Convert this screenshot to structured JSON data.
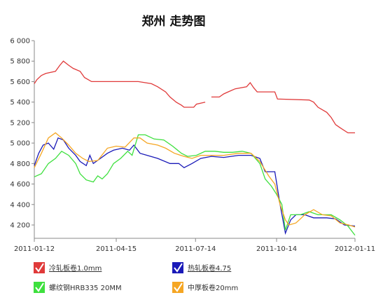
{
  "chart_data": {
    "type": "line",
    "title": "郑州 走势图",
    "xlim": [
      "2011-01-12",
      "2012-01-11"
    ],
    "xticks": [
      "2011-01-12",
      "2011-04-15",
      "2011-07-14",
      "2011-10-14",
      "2012-01-11"
    ],
    "ylim": [
      4070,
      6000
    ],
    "yticks": [
      {
        "value": 4200,
        "label": "4 200"
      },
      {
        "value": 4400,
        "label": "4 400"
      },
      {
        "value": 4600,
        "label": "4 600"
      },
      {
        "value": 4800,
        "label": "4 800"
      },
      {
        "value": 5000,
        "label": "5 000"
      },
      {
        "value": 5200,
        "label": "5 200"
      },
      {
        "value": 5400,
        "label": "5 400"
      },
      {
        "value": 5600,
        "label": "5 600"
      },
      {
        "value": 5800,
        "label": "5 800"
      },
      {
        "value": 6000,
        "label": "6 000"
      }
    ],
    "grid": false,
    "series": [
      {
        "name": "冷轧板卷1.0mm",
        "color": "#e03a3a",
        "x": [
          "2011-01-12",
          "2011-01-15",
          "2011-01-20",
          "2011-01-25",
          "2011-02-05",
          "2011-02-10",
          "2011-02-14",
          "2011-02-20",
          "2011-02-25",
          "2011-03-05",
          "2011-03-10",
          "2011-03-18",
          "2011-04-15",
          "2011-05-10",
          "2011-05-25",
          "2011-06-01",
          "2011-06-10",
          "2011-06-15",
          "2011-06-22",
          "2011-06-28",
          "2011-07-01",
          "2011-07-12",
          "2011-07-15",
          "2011-07-25",
          "2011-07-28",
          "2011-08-01",
          "2011-08-10",
          "2011-08-15",
          "2011-08-20",
          "2011-08-28",
          "2011-09-10",
          "2011-09-14",
          "2011-09-18",
          "2011-09-22",
          "2011-10-12",
          "2011-10-15",
          "2011-11-20",
          "2011-11-25",
          "2011-11-30",
          "2011-12-10",
          "2011-12-15",
          "2011-12-20",
          "2011-12-25",
          "2012-01-03",
          "2012-01-11"
        ],
        "values": [
          5580,
          5620,
          5660,
          5680,
          5700,
          5760,
          5800,
          5760,
          5730,
          5700,
          5640,
          5600,
          5600,
          5600,
          5580,
          5550,
          5500,
          5450,
          5400,
          5370,
          5350,
          5350,
          5380,
          5400,
          null,
          5450,
          5450,
          5480,
          5500,
          5530,
          5550,
          5590,
          5540,
          5500,
          5500,
          5430,
          5420,
          5400,
          5350,
          5300,
          5250,
          5180,
          5150,
          5100,
          5100
        ]
      },
      {
        "name": "热轧板卷4.75",
        "color": "#1a1ab8",
        "x": [
          "2011-01-12",
          "2011-01-17",
          "2011-01-22",
          "2011-01-28",
          "2011-02-03",
          "2011-02-08",
          "2011-02-14",
          "2011-02-20",
          "2011-02-28",
          "2011-03-05",
          "2011-03-12",
          "2011-03-16",
          "2011-03-20",
          "2011-03-28",
          "2011-04-05",
          "2011-04-12",
          "2011-04-22",
          "2011-04-30",
          "2011-05-05",
          "2011-05-12",
          "2011-05-20",
          "2011-06-01",
          "2011-06-15",
          "2011-06-25",
          "2011-07-01",
          "2011-07-10",
          "2011-07-20",
          "2011-08-01",
          "2011-08-15",
          "2011-09-01",
          "2011-09-15",
          "2011-09-25",
          "2011-10-01",
          "2011-10-12",
          "2011-10-18",
          "2011-10-24",
          "2011-10-30",
          "2011-11-05",
          "2011-11-15",
          "2011-11-25",
          "2011-12-10",
          "2011-12-20",
          "2011-12-30",
          "2012-01-11"
        ],
        "values": [
          4780,
          4900,
          4980,
          5000,
          4940,
          5050,
          5030,
          4950,
          4880,
          4820,
          4780,
          4880,
          4800,
          4850,
          4900,
          4930,
          4950,
          4930,
          4980,
          4900,
          4880,
          4850,
          4800,
          4800,
          4760,
          4800,
          4850,
          4870,
          4860,
          4880,
          4880,
          4850,
          4720,
          4720,
          4400,
          4120,
          4250,
          4300,
          4300,
          4270,
          4270,
          4260,
          4200,
          4190
        ]
      },
      {
        "name": "螺纹钢HRB335 20MM",
        "color": "#3ee03e",
        "x": [
          "2011-01-12",
          "2011-01-20",
          "2011-01-28",
          "2011-02-05",
          "2011-02-12",
          "2011-02-20",
          "2011-02-28",
          "2011-03-05",
          "2011-03-12",
          "2011-03-20",
          "2011-03-25",
          "2011-03-30",
          "2011-04-05",
          "2011-04-12",
          "2011-04-20",
          "2011-04-28",
          "2011-05-03",
          "2011-05-10",
          "2011-05-18",
          "2011-05-28",
          "2011-06-08",
          "2011-06-18",
          "2011-06-28",
          "2011-07-05",
          "2011-07-15",
          "2011-07-25",
          "2011-08-05",
          "2011-08-15",
          "2011-08-25",
          "2011-09-05",
          "2011-09-15",
          "2011-09-25",
          "2011-10-01",
          "2011-10-08",
          "2011-10-14",
          "2011-10-20",
          "2011-10-24",
          "2011-10-30",
          "2011-11-10",
          "2011-11-20",
          "2011-11-30",
          "2011-12-15",
          "2011-12-25",
          "2012-01-03",
          "2012-01-11"
        ],
        "values": [
          4670,
          4700,
          4800,
          4850,
          4920,
          4880,
          4800,
          4700,
          4640,
          4620,
          4680,
          4650,
          4700,
          4800,
          4850,
          4920,
          4880,
          5080,
          5080,
          5040,
          5030,
          4970,
          4900,
          4870,
          4880,
          4920,
          4920,
          4910,
          4910,
          4920,
          4900,
          4800,
          4650,
          4580,
          4500,
          4400,
          4150,
          4300,
          4300,
          4330,
          4300,
          4300,
          4250,
          4190,
          4100
        ]
      },
      {
        "name": "中厚板卷20mm",
        "color": "#f5a623",
        "x": [
          "2011-01-12",
          "2011-01-20",
          "2011-01-28",
          "2011-02-05",
          "2011-02-12",
          "2011-02-20",
          "2011-02-28",
          "2011-03-08",
          "2011-03-15",
          "2011-03-25",
          "2011-04-05",
          "2011-04-15",
          "2011-04-25",
          "2011-05-05",
          "2011-05-12",
          "2011-05-20",
          "2011-06-01",
          "2011-06-10",
          "2011-06-20",
          "2011-07-01",
          "2011-07-10",
          "2011-07-20",
          "2011-08-01",
          "2011-08-15",
          "2011-09-01",
          "2011-09-15",
          "2011-09-25",
          "2011-10-05",
          "2011-10-12",
          "2011-10-18",
          "2011-10-24",
          "2011-10-28",
          "2011-11-05",
          "2011-11-15",
          "2011-11-25",
          "2011-12-05",
          "2011-12-15",
          "2011-12-25",
          "2012-01-04",
          "2012-01-11"
        ],
        "values": [
          4760,
          4900,
          5050,
          5100,
          5050,
          4980,
          4900,
          4850,
          4820,
          4830,
          4950,
          4970,
          4960,
          5050,
          5050,
          5000,
          4980,
          4950,
          4900,
          4870,
          4850,
          4880,
          4880,
          4880,
          4900,
          4900,
          4820,
          4680,
          4600,
          4400,
          4250,
          4200,
          4220,
          4300,
          4350,
          4300,
          4290,
          4220,
          4200,
          4180
        ]
      }
    ]
  }
}
